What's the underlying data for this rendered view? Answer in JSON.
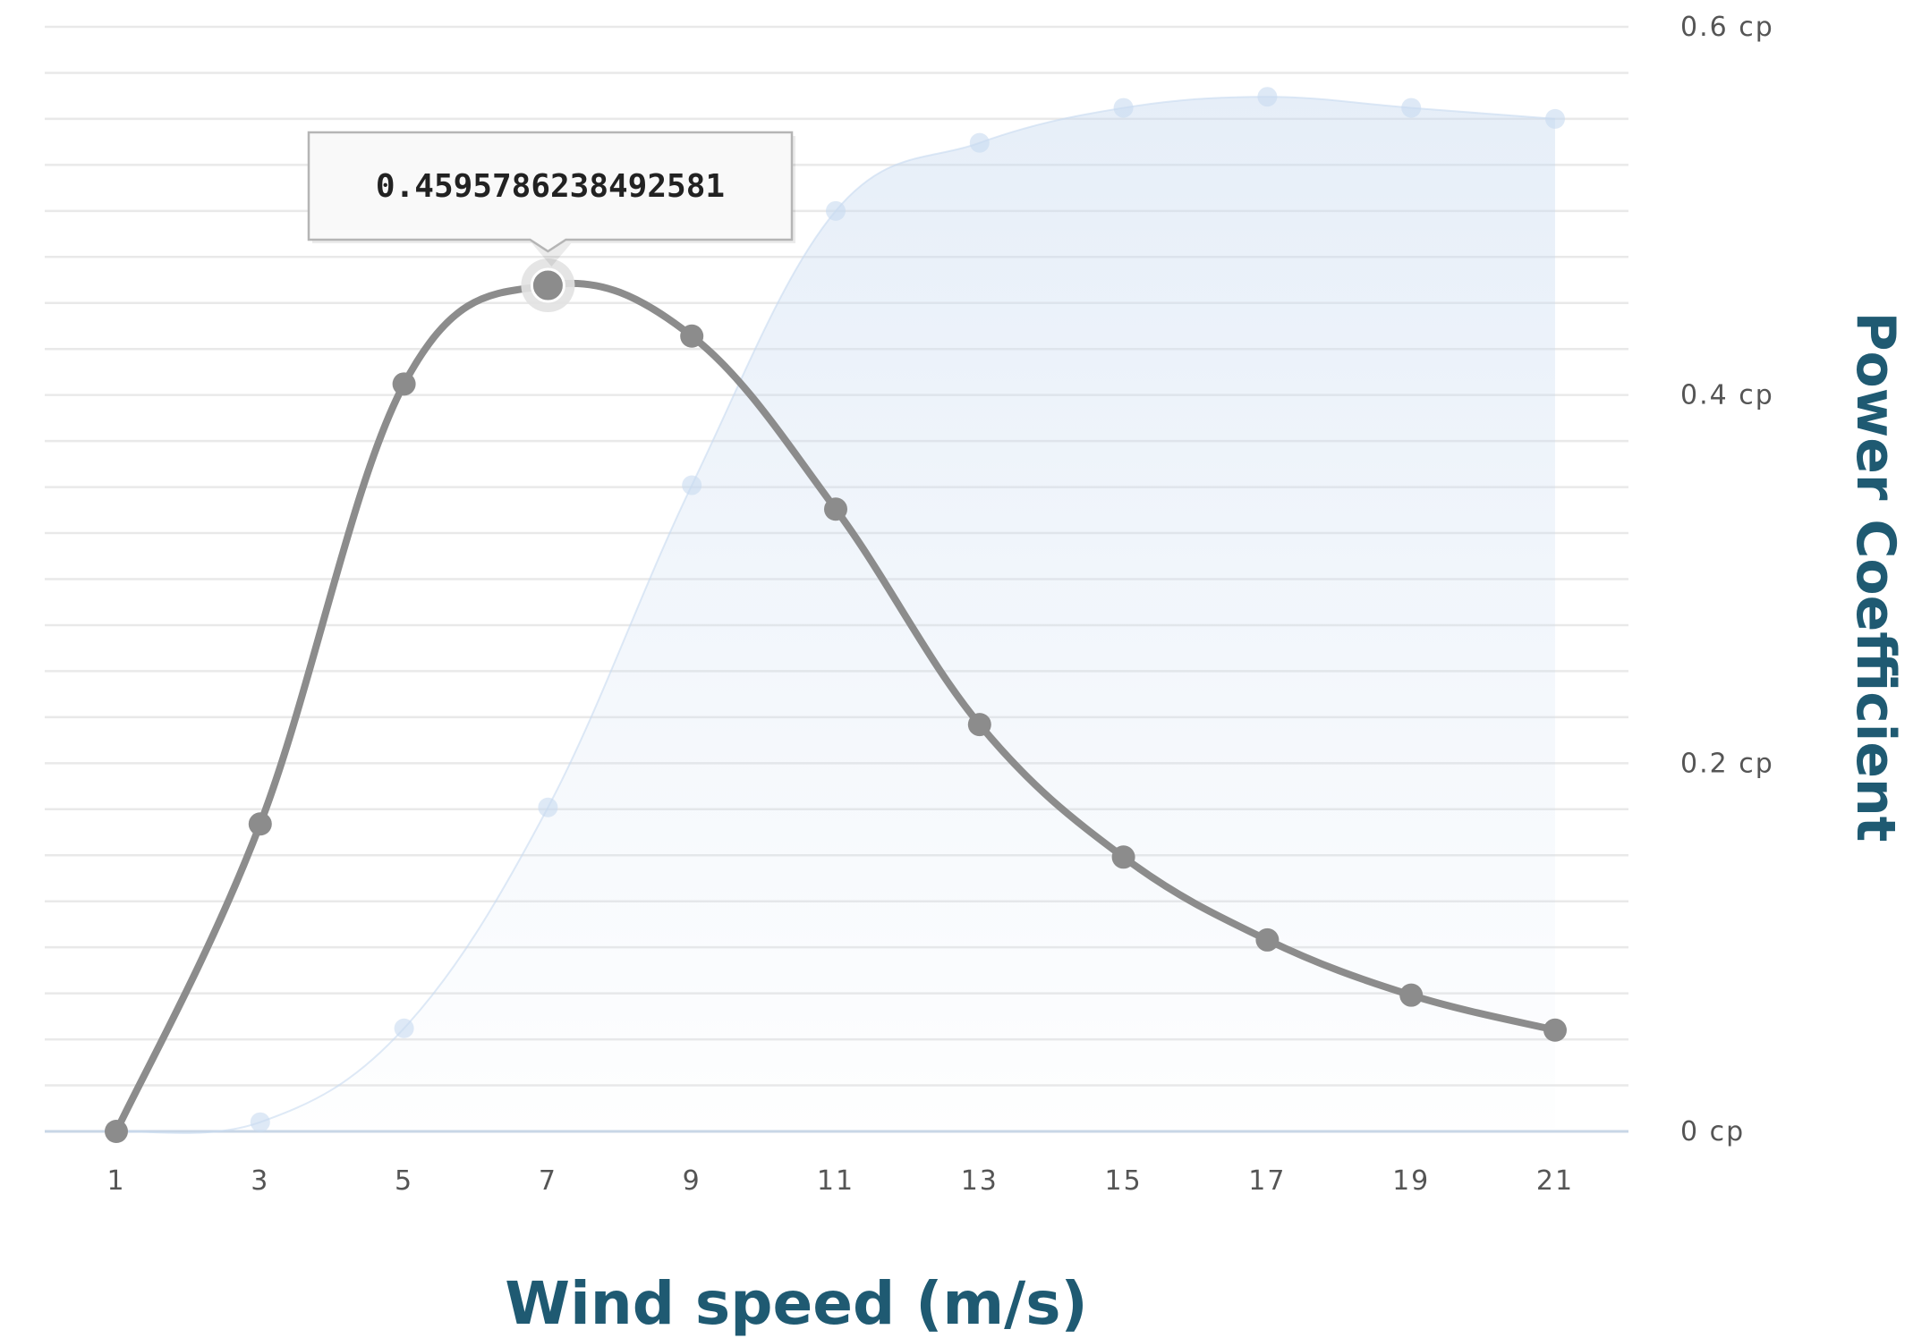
{
  "chart_data": {
    "type": "line",
    "xlabel": "Wind speed (m/s)",
    "ylabel": "Power Coefficient",
    "x": [
      1,
      3,
      5,
      7,
      9,
      11,
      13,
      15,
      17,
      19,
      21
    ],
    "x_tick_labels": [
      "1",
      "3",
      "5",
      "7",
      "9",
      "11",
      "13",
      "15",
      "17",
      "19",
      "21"
    ],
    "y_tick_labels": [
      "0 cp",
      "0.2 cp",
      "0.4 cp",
      "0.6 cp"
    ],
    "y_ticks": [
      0,
      0.2,
      0.4,
      0.6
    ],
    "ylim": [
      0,
      0.6
    ],
    "y_axis_side": "right",
    "grid": true,
    "series": [
      {
        "kind": "area",
        "color": "#c8daf0",
        "values": [
          0,
          0.005,
          0.056,
          0.176,
          0.351,
          0.5,
          0.537,
          0.556,
          0.562,
          0.556,
          0.55
        ]
      },
      {
        "kind": "line",
        "color": "#8c8c8c",
        "values": [
          0,
          0.167,
          0.406,
          0.4595786238492581,
          0.432,
          0.338,
          0.221,
          0.149,
          0.104,
          0.074,
          0.055
        ]
      }
    ],
    "tooltip": {
      "text": "0.4595786238492581",
      "series_index": 1,
      "point_index": 3
    }
  }
}
